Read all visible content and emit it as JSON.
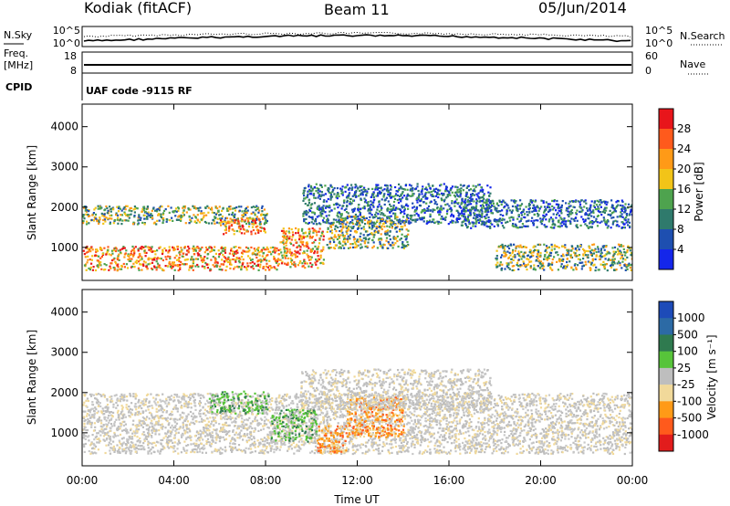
{
  "header": {
    "station": "Kodiak (fitACF)",
    "beam": "Beam 11",
    "date": "05/Jun/2014"
  },
  "panels": {
    "nsky_label": "N.Sky",
    "nsearch_label": "N.Search",
    "noise_ticks_left": [
      "10^5",
      "10^0"
    ],
    "noise_ticks_right": [
      "10^5",
      "10^0"
    ],
    "freq_label_1": "Freq.",
    "freq_label_2": "[MHz]",
    "freq_ticks": [
      "18",
      "8"
    ],
    "nave_label": "Nave",
    "nave_ticks": [
      "60",
      "0"
    ],
    "cpid_label": "CPID",
    "cpid_text": "UAF code -9115 RF"
  },
  "chart_data": [
    {
      "type": "heatmap",
      "name": "power",
      "ylabel": "Slant Range [km]",
      "ylim": [
        180,
        4560
      ],
      "yticks": [
        1000,
        2000,
        3000,
        4000
      ],
      "xlim": [
        0,
        24
      ],
      "colorbar": {
        "label": "Power [dB]",
        "ticks": [
          "28",
          "24",
          "20",
          "16",
          "12",
          "8",
          "4"
        ],
        "colors": [
          "#e8151b",
          "#ff5a1c",
          "#ff9a17",
          "#f2c418",
          "#4ea34e",
          "#2f7a6c",
          "#1e4fb0",
          "#1426ea"
        ]
      },
      "scatter_regions": [
        {
          "start": 0.0,
          "end": 8.1,
          "range_min": 1600,
          "range_max": 2050,
          "level": "mid"
        },
        {
          "start": 6.0,
          "end": 8.0,
          "range_min": 1350,
          "range_max": 1750,
          "level": "high"
        },
        {
          "start": 0.0,
          "end": 8.6,
          "range_min": 450,
          "range_max": 1050,
          "level": "high"
        },
        {
          "start": 8.6,
          "end": 10.5,
          "range_min": 500,
          "range_max": 1500,
          "level": "high"
        },
        {
          "start": 9.6,
          "end": 17.8,
          "range_min": 1600,
          "range_max": 2600,
          "level": "low"
        },
        {
          "start": 10.6,
          "end": 14.2,
          "range_min": 1000,
          "range_max": 1800,
          "level": "mid"
        },
        {
          "start": 16.5,
          "end": 24.0,
          "range_min": 1500,
          "range_max": 2200,
          "level": "low"
        },
        {
          "start": 18.0,
          "end": 24.0,
          "range_min": 450,
          "range_max": 1100,
          "level": "mid"
        }
      ]
    },
    {
      "type": "heatmap",
      "name": "velocity",
      "ylabel": "Slant Range [km]",
      "xlabel": "Time UT",
      "ylim": [
        180,
        4560
      ],
      "yticks": [
        1000,
        2000,
        3000,
        4000
      ],
      "xlim": [
        0,
        24
      ],
      "xticks": [
        "00:00",
        "04:00",
        "08:00",
        "12:00",
        "16:00",
        "20:00",
        "00:00"
      ],
      "colorbar": {
        "label": "Velocity [m s⁻¹]",
        "ticks": [
          "1000",
          "500",
          "100",
          "25",
          "-25",
          "-100",
          "-500",
          "-1000"
        ],
        "colors": [
          "#1d4bb8",
          "#2c6aa5",
          "#2f7a4f",
          "#57c43a",
          "#bebebe",
          "#f1d99a",
          "#ff9a17",
          "#ff5a1c",
          "#e21c1c"
        ]
      },
      "scatter_regions": [
        {
          "start": 0.0,
          "end": 24.0,
          "range_min": 500,
          "range_max": 2000,
          "level": "gray"
        },
        {
          "start": 5.5,
          "end": 8.1,
          "range_min": 1500,
          "range_max": 2050,
          "level": "green"
        },
        {
          "start": 8.2,
          "end": 10.2,
          "range_min": 800,
          "range_max": 1600,
          "level": "green"
        },
        {
          "start": 10.2,
          "end": 11.5,
          "range_min": 500,
          "range_max": 1200,
          "level": "orange"
        },
        {
          "start": 11.5,
          "end": 14.0,
          "range_min": 900,
          "range_max": 1900,
          "level": "orange"
        },
        {
          "start": 9.5,
          "end": 17.8,
          "range_min": 1600,
          "range_max": 2600,
          "level": "gray"
        }
      ]
    }
  ]
}
